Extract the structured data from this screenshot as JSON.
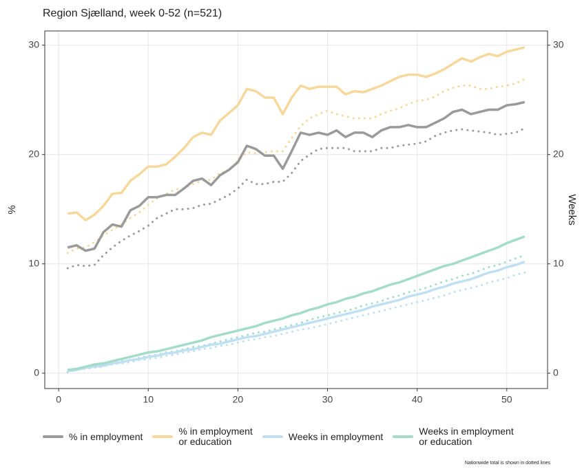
{
  "chart_data": {
    "type": "line",
    "subtitle": "Region Sjælland, week 0-52 (n=521)",
    "y_label": "%",
    "y2_label": "Weeks",
    "note": "Nationwide total is shown in dotted lines",
    "x": [
      1,
      2,
      3,
      4,
      5,
      6,
      7,
      8,
      9,
      10,
      11,
      12,
      13,
      14,
      15,
      16,
      17,
      18,
      19,
      20,
      21,
      22,
      23,
      24,
      25,
      26,
      27,
      28,
      29,
      30,
      31,
      32,
      33,
      34,
      35,
      36,
      37,
      38,
      39,
      40,
      41,
      42,
      43,
      44,
      45,
      46,
      47,
      48,
      49,
      50,
      51,
      52
    ],
    "xlim": [
      -1.55,
      54.55
    ],
    "xticks": [
      0,
      10,
      20,
      30,
      40,
      50
    ],
    "ylim": [
      -1.4,
      31.3
    ],
    "yticks": [
      0,
      10,
      20,
      30
    ],
    "y2lim": [
      -1.4,
      31.3
    ],
    "y2ticks": [
      0,
      10,
      20,
      30
    ],
    "grid": true,
    "series": [
      {
        "name": "% in employment",
        "color": "#9a9a9a",
        "values": [
          11.5,
          11.7,
          11.2,
          11.4,
          12.9,
          13.6,
          13.4,
          14.9,
          15.3,
          16.1,
          16.1,
          16.3,
          16.3,
          16.9,
          17.6,
          17.8,
          17.2,
          18.1,
          18.6,
          19.3,
          20.8,
          20.5,
          19.9,
          19.9,
          18.7,
          20.3,
          22.0,
          21.8,
          22.0,
          21.8,
          22.2,
          21.6,
          22.0,
          22.0,
          21.6,
          22.2,
          22.5,
          22.5,
          22.7,
          22.5,
          22.5,
          22.9,
          23.3,
          23.9,
          24.1,
          23.7,
          23.9,
          24.1,
          24.1,
          24.5,
          24.6,
          24.8
        ],
        "nationwide": [
          9.6,
          9.9,
          9.8,
          9.9,
          10.8,
          11.5,
          12.1,
          12.6,
          13.0,
          13.5,
          14.2,
          14.6,
          15.0,
          15.0,
          15.1,
          15.4,
          15.5,
          15.9,
          16.3,
          16.9,
          17.7,
          17.3,
          17.3,
          17.5,
          17.5,
          18.3,
          19.4,
          20.0,
          20.5,
          20.6,
          20.6,
          20.6,
          20.3,
          20.3,
          20.3,
          20.6,
          20.6,
          20.8,
          20.9,
          21.0,
          21.2,
          21.7,
          22.0,
          22.2,
          22.3,
          22.2,
          22.1,
          22.0,
          21.8,
          21.9,
          22.0,
          22.4
        ]
      },
      {
        "name": "% in employment\nor education",
        "color": "#f6d89c",
        "values": [
          14.6,
          14.7,
          14.0,
          14.5,
          15.3,
          16.4,
          16.5,
          17.6,
          18.2,
          18.9,
          18.9,
          19.1,
          19.8,
          20.6,
          21.6,
          22.0,
          21.8,
          23.1,
          23.8,
          24.5,
          26.0,
          25.8,
          25.2,
          25.2,
          23.7,
          25.2,
          26.3,
          26.0,
          26.2,
          26.2,
          26.2,
          25.5,
          25.8,
          25.7,
          26.0,
          26.3,
          26.7,
          27.1,
          27.3,
          27.3,
          27.1,
          27.4,
          27.8,
          28.3,
          28.8,
          28.5,
          28.9,
          29.2,
          29.0,
          29.4,
          29.6,
          29.8
        ],
        "nationwide": [
          11.0,
          11.4,
          11.5,
          12.0,
          12.6,
          13.1,
          13.6,
          14.2,
          14.7,
          15.4,
          16.0,
          16.4,
          16.8,
          16.9,
          17.3,
          17.6,
          17.7,
          18.3,
          18.6,
          19.4,
          20.2,
          20.1,
          20.2,
          20.3,
          20.3,
          21.5,
          22.6,
          23.3,
          23.7,
          24.0,
          23.7,
          23.5,
          23.3,
          23.3,
          23.3,
          23.7,
          24.0,
          24.2,
          24.6,
          24.9,
          25.0,
          25.3,
          25.8,
          26.1,
          26.3,
          26.3,
          26.0,
          26.0,
          26.2,
          26.3,
          26.5,
          26.9
        ]
      },
      {
        "name": "Weeks in employment",
        "color": "#bfe0f2",
        "axis": "y2",
        "values": [
          0.2,
          0.3,
          0.5,
          0.6,
          0.7,
          0.9,
          1.0,
          1.2,
          1.3,
          1.5,
          1.6,
          1.8,
          1.9,
          2.1,
          2.2,
          2.4,
          2.6,
          2.7,
          2.9,
          3.1,
          3.3,
          3.4,
          3.6,
          3.8,
          4.0,
          4.2,
          4.4,
          4.6,
          4.8,
          5.0,
          5.2,
          5.4,
          5.6,
          5.8,
          6.1,
          6.3,
          6.5,
          6.7,
          7.0,
          7.2,
          7.4,
          7.7,
          7.9,
          8.2,
          8.4,
          8.6,
          8.9,
          9.2,
          9.4,
          9.7,
          9.9,
          10.2
        ],
        "nationwide": [
          0.1,
          0.3,
          0.4,
          0.5,
          0.6,
          0.8,
          0.9,
          1.0,
          1.2,
          1.3,
          1.4,
          1.6,
          1.7,
          1.9,
          2.0,
          2.2,
          2.3,
          2.5,
          2.6,
          2.8,
          3.0,
          3.1,
          3.3,
          3.4,
          3.6,
          3.8,
          4.0,
          4.1,
          4.3,
          4.5,
          4.7,
          4.9,
          5.1,
          5.3,
          5.5,
          5.7,
          5.9,
          6.1,
          6.3,
          6.5,
          6.7,
          6.9,
          7.1,
          7.4,
          7.6,
          7.8,
          8.0,
          8.3,
          8.5,
          8.7,
          9.0,
          9.2
        ]
      },
      {
        "name": "Weeks in employment\nor education",
        "color": "#a3dcc8",
        "axis": "y2",
        "values": [
          0.3,
          0.4,
          0.6,
          0.8,
          0.9,
          1.1,
          1.3,
          1.5,
          1.7,
          1.9,
          2.0,
          2.2,
          2.4,
          2.6,
          2.8,
          3.0,
          3.3,
          3.5,
          3.7,
          3.9,
          4.1,
          4.3,
          4.6,
          4.8,
          5.0,
          5.3,
          5.5,
          5.8,
          6.0,
          6.3,
          6.5,
          6.8,
          7.0,
          7.3,
          7.5,
          7.8,
          8.1,
          8.3,
          8.6,
          8.9,
          9.2,
          9.5,
          9.8,
          10.0,
          10.3,
          10.6,
          10.9,
          11.2,
          11.5,
          11.9,
          12.2,
          12.5
        ],
        "nationwide": [
          0.1,
          0.3,
          0.5,
          0.6,
          0.8,
          0.9,
          1.1,
          1.2,
          1.4,
          1.6,
          1.7,
          1.9,
          2.0,
          2.2,
          2.4,
          2.5,
          2.7,
          2.9,
          3.1,
          3.3,
          3.5,
          3.7,
          3.8,
          4.0,
          4.2,
          4.4,
          4.6,
          4.9,
          5.1,
          5.3,
          5.5,
          5.7,
          5.9,
          6.2,
          6.4,
          6.6,
          6.9,
          7.1,
          7.4,
          7.6,
          7.8,
          8.1,
          8.4,
          8.6,
          8.9,
          9.1,
          9.4,
          9.7,
          9.9,
          10.2,
          10.5,
          10.8
        ]
      }
    ]
  }
}
